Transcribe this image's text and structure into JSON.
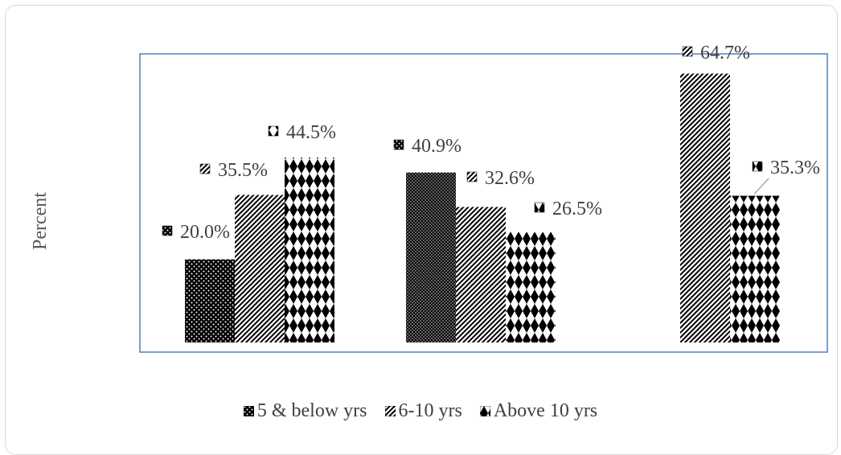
{
  "chart_data": {
    "type": "bar",
    "title": "",
    "xlabel": "",
    "ylabel": "Percent",
    "ylim": [
      0,
      70
    ],
    "categories": [
      "",
      "",
      ""
    ],
    "series": [
      {
        "name": "5 & below yrs",
        "values": [
          20.0,
          40.9,
          null
        ],
        "labels": [
          "20.0%",
          "40.9%",
          ""
        ],
        "pattern": "dots"
      },
      {
        "name": "6-10 yrs",
        "values": [
          35.5,
          32.6,
          64.7
        ],
        "labels": [
          "35.5%",
          "32.6%",
          "64.7%"
        ],
        "pattern": "diagonal"
      },
      {
        "name": "Above 10 yrs",
        "values": [
          44.5,
          26.5,
          35.3
        ],
        "labels": [
          "44.5%",
          "26.5%",
          "35.3%"
        ],
        "pattern": "diamonds"
      }
    ],
    "legend_position": "bottom",
    "grid": false,
    "colors": {
      "fill": "#000000",
      "pattern_bg": "#ffffff",
      "plot_border": "#4f81bd",
      "frame_border": "#d9d9d9",
      "leader_line": "#a6a6a6"
    }
  }
}
